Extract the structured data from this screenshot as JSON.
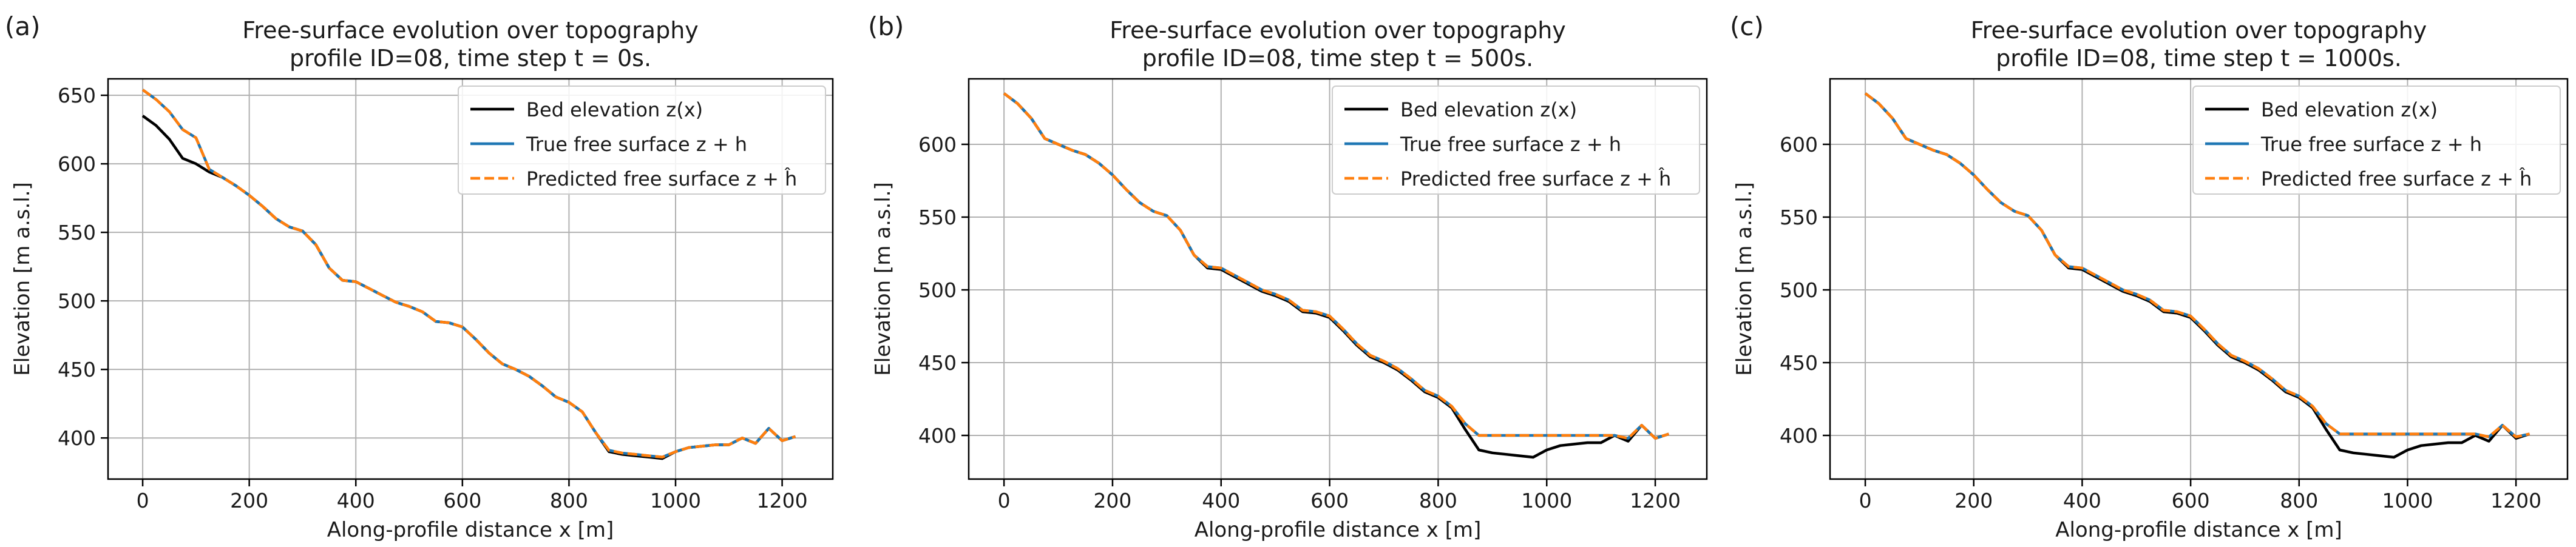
{
  "figure": {
    "panel_labels": [
      "(a)",
      "(b)",
      "(c)"
    ]
  },
  "colors": {
    "bed": "#000000",
    "true_surface": "#1f77b4",
    "predicted_surface": "#ff7f0e",
    "grid": "#b0b0b0",
    "axis": "#000000"
  },
  "chart_data": [
    {
      "type": "line",
      "panel": "(a)",
      "title_line1": "Free-surface evolution over topography",
      "title_line2": "profile ID=08, time step t = 0s.",
      "xlabel": "Along-profile distance x [m]",
      "ylabel": "Elevation [m a.s.l.]",
      "xlim": [
        -65,
        1295
      ],
      "ylim": [
        370,
        662
      ],
      "xticks": [
        0,
        200,
        400,
        600,
        800,
        1000,
        1200
      ],
      "yticks": [
        400,
        450,
        500,
        550,
        600,
        650
      ],
      "grid": true,
      "legend_position": "top-right",
      "x": [
        0,
        25,
        50,
        75,
        100,
        125,
        150,
        175,
        200,
        225,
        250,
        275,
        300,
        325,
        350,
        375,
        400,
        425,
        450,
        475,
        500,
        525,
        550,
        575,
        600,
        625,
        650,
        675,
        700,
        725,
        750,
        775,
        800,
        825,
        850,
        875,
        900,
        925,
        950,
        975,
        1000,
        1025,
        1050,
        1075,
        1100,
        1125,
        1150,
        1175,
        1200,
        1225
      ],
      "series": [
        {
          "name": "Bed elevation z(x)",
          "color_key": "bed",
          "dash": "solid",
          "values": [
            635,
            628,
            618,
            604,
            600,
            594,
            590,
            584,
            577,
            569,
            560,
            554,
            551,
            541,
            524,
            515,
            514,
            509,
            504,
            499,
            496,
            492,
            485,
            484,
            481,
            472,
            462,
            454,
            450,
            445,
            438,
            430,
            426,
            419,
            404,
            390,
            388,
            387,
            386,
            385,
            390,
            393,
            394,
            395,
            395,
            400,
            396,
            407,
            398,
            401
          ]
        },
        {
          "name": "True free surface z + h",
          "color_key": "true_surface",
          "dash": "solid",
          "values": [
            654,
            647,
            638,
            625,
            619,
            596,
            590,
            584,
            577,
            569,
            560,
            554,
            551,
            541,
            524,
            515,
            514,
            509,
            504,
            499,
            496,
            492,
            485,
            484,
            481,
            472,
            462,
            454,
            450,
            445,
            438,
            430,
            426,
            419,
            404,
            391,
            389,
            388,
            387,
            386,
            390,
            393,
            394,
            395,
            395,
            400,
            396,
            407,
            398,
            401
          ]
        },
        {
          "name": "Predicted free surface z + ĥ",
          "color_key": "predicted_surface",
          "dash": "dashed",
          "values": [
            654,
            647,
            638,
            625,
            619,
            596,
            590,
            584,
            577,
            569,
            560,
            554,
            551,
            541,
            524,
            515,
            514,
            509,
            504,
            499,
            496,
            492,
            485,
            484,
            481,
            472,
            462,
            454,
            450,
            445,
            438,
            430,
            426,
            419,
            404,
            391,
            389,
            388,
            387,
            386,
            390,
            393,
            394,
            395,
            395,
            400,
            396,
            407,
            398,
            401
          ]
        }
      ]
    },
    {
      "type": "line",
      "panel": "(b)",
      "title_line1": "Free-surface evolution over topography",
      "title_line2": "profile ID=08, time step t = 500s.",
      "xlabel": "Along-profile distance x [m]",
      "ylabel": "Elevation [m a.s.l.]",
      "xlim": [
        -65,
        1295
      ],
      "ylim": [
        370,
        645
      ],
      "xticks": [
        0,
        200,
        400,
        600,
        800,
        1000,
        1200
      ],
      "yticks": [
        400,
        450,
        500,
        550,
        600
      ],
      "grid": true,
      "legend_position": "top-right",
      "x": [
        0,
        25,
        50,
        75,
        100,
        125,
        150,
        175,
        200,
        225,
        250,
        275,
        300,
        325,
        350,
        375,
        400,
        425,
        450,
        475,
        500,
        525,
        550,
        575,
        600,
        625,
        650,
        675,
        700,
        725,
        750,
        775,
        800,
        825,
        850,
        875,
        900,
        925,
        950,
        975,
        1000,
        1025,
        1050,
        1075,
        1100,
        1125,
        1150,
        1175,
        1200,
        1225
      ],
      "series": [
        {
          "name": "Bed elevation z(x)",
          "color_key": "bed",
          "dash": "solid",
          "values": [
            635,
            628,
            618,
            604,
            600,
            596,
            593,
            587,
            579,
            569,
            560,
            554,
            551,
            541,
            524,
            515,
            514,
            509,
            504,
            499,
            496,
            492,
            485,
            484,
            481,
            472,
            462,
            454,
            450,
            445,
            438,
            430,
            426,
            419,
            404,
            390,
            388,
            387,
            386,
            385,
            390,
            393,
            394,
            395,
            395,
            400,
            396,
            407,
            398,
            401
          ]
        },
        {
          "name": "True free surface z + h",
          "color_key": "true_surface",
          "dash": "solid",
          "values": [
            635,
            628,
            618,
            604,
            600,
            596,
            593,
            587,
            579,
            569,
            560,
            554,
            551,
            541,
            524,
            516,
            515,
            510,
            505,
            500,
            497,
            493,
            486,
            485,
            482,
            473,
            463,
            455,
            451,
            446,
            439,
            431,
            427,
            420,
            408,
            400,
            400,
            400,
            400,
            400,
            400,
            400,
            400,
            400,
            400,
            400,
            398,
            407,
            398,
            401
          ]
        },
        {
          "name": "Predicted free surface z + ĥ",
          "color_key": "predicted_surface",
          "dash": "dashed",
          "values": [
            635,
            628,
            618,
            604,
            600,
            596,
            593,
            587,
            579,
            569,
            560,
            554,
            551,
            541,
            524,
            516,
            515,
            510,
            505,
            500,
            497,
            493,
            486,
            485,
            482,
            473,
            463,
            455,
            451,
            446,
            439,
            431,
            427,
            420,
            408,
            400,
            400,
            400,
            400,
            400,
            400,
            400,
            400,
            400,
            400,
            400,
            398,
            407,
            398,
            401
          ]
        }
      ]
    },
    {
      "type": "line",
      "panel": "(c)",
      "title_line1": "Free-surface evolution over topography",
      "title_line2": "profile ID=08, time step t = 1000s.",
      "xlabel": "Along-profile distance x [m]",
      "ylabel": "Elevation [m a.s.l.]",
      "xlim": [
        -65,
        1295
      ],
      "ylim": [
        370,
        645
      ],
      "xticks": [
        0,
        200,
        400,
        600,
        800,
        1000,
        1200
      ],
      "yticks": [
        400,
        450,
        500,
        550,
        600
      ],
      "grid": true,
      "legend_position": "top-right",
      "x": [
        0,
        25,
        50,
        75,
        100,
        125,
        150,
        175,
        200,
        225,
        250,
        275,
        300,
        325,
        350,
        375,
        400,
        425,
        450,
        475,
        500,
        525,
        550,
        575,
        600,
        625,
        650,
        675,
        700,
        725,
        750,
        775,
        800,
        825,
        850,
        875,
        900,
        925,
        950,
        975,
        1000,
        1025,
        1050,
        1075,
        1100,
        1125,
        1150,
        1175,
        1200,
        1225
      ],
      "series": [
        {
          "name": "Bed elevation z(x)",
          "color_key": "bed",
          "dash": "solid",
          "values": [
            635,
            628,
            618,
            604,
            600,
            596,
            593,
            587,
            579,
            569,
            560,
            554,
            551,
            541,
            524,
            515,
            514,
            509,
            504,
            499,
            496,
            492,
            485,
            484,
            481,
            472,
            462,
            454,
            450,
            445,
            438,
            430,
            426,
            419,
            404,
            390,
            388,
            387,
            386,
            385,
            390,
            393,
            394,
            395,
            395,
            400,
            396,
            407,
            398,
            401
          ]
        },
        {
          "name": "True free surface z + h",
          "color_key": "true_surface",
          "dash": "solid",
          "values": [
            635,
            628,
            618,
            604,
            600,
            596,
            593,
            587,
            579,
            569,
            560,
            554,
            551,
            541,
            524,
            516,
            515,
            510,
            505,
            500,
            497,
            493,
            486,
            485,
            482,
            473,
            463,
            455,
            451,
            446,
            439,
            431,
            427,
            420,
            408,
            401,
            401,
            401,
            401,
            401,
            401,
            401,
            401,
            401,
            401,
            401,
            399,
            407,
            399,
            401
          ]
        },
        {
          "name": "Predicted free surface z + ĥ",
          "color_key": "predicted_surface",
          "dash": "dashed",
          "values": [
            635,
            628,
            618,
            604,
            600,
            596,
            593,
            587,
            579,
            569,
            560,
            554,
            551,
            541,
            524,
            516,
            515,
            510,
            505,
            500,
            497,
            493,
            486,
            485,
            482,
            473,
            463,
            455,
            451,
            446,
            439,
            431,
            427,
            420,
            408,
            401,
            401,
            401,
            401,
            401,
            401,
            401,
            401,
            401,
            401,
            401,
            399,
            407,
            399,
            401
          ]
        }
      ]
    }
  ]
}
